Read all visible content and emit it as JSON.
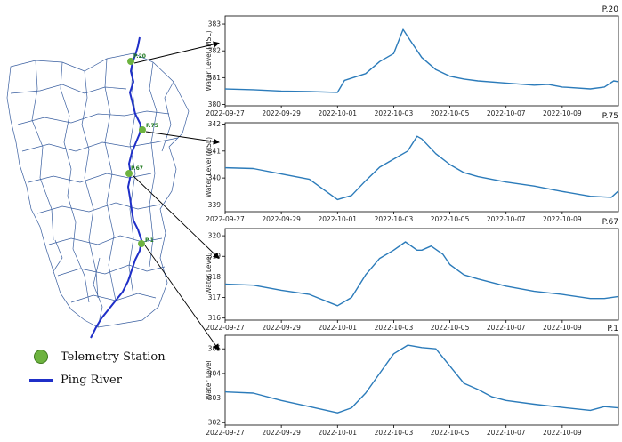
{
  "legend": {
    "station_label": "Telemetry Station",
    "river_label": "Ping River"
  },
  "map": {
    "stations": [
      "P.20",
      "P.75",
      "P.67",
      "P.1"
    ],
    "station_color": "#6db33f",
    "river_color": "#1f2fc8",
    "boundary_color": "#3a5fa0"
  },
  "chart_data": [
    {
      "type": "line",
      "title": "P.20",
      "xlabel": "",
      "ylabel": "Water Level (MSL)",
      "x_ticks": [
        "2022-09-27",
        "2022-09-29",
        "2022-10-01",
        "2022-10-03",
        "2022-10-05",
        "2022-10-07",
        "2022-10-09"
      ],
      "y_ticks": [
        380,
        381,
        382,
        383
      ],
      "xlim": [
        "2022-09-27",
        "2022-10-11"
      ],
      "ylim": [
        379.95,
        383.3
      ],
      "color": "#2b7bba",
      "points": [
        [
          "2022-09-27",
          380.58
        ],
        [
          "2022-09-28",
          380.55
        ],
        [
          "2022-09-29",
          380.5
        ],
        [
          "2022-09-30",
          380.48
        ],
        [
          "2022-10-01",
          380.45
        ],
        [
          "2022-10-01T06",
          380.9
        ],
        [
          "2022-10-02",
          381.15
        ],
        [
          "2022-10-02T12",
          381.6
        ],
        [
          "2022-10-03",
          381.9
        ],
        [
          "2022-10-03T08",
          382.8
        ],
        [
          "2022-10-03T14",
          382.4
        ],
        [
          "2022-10-04",
          381.75
        ],
        [
          "2022-10-04T12",
          381.3
        ],
        [
          "2022-10-05",
          381.05
        ],
        [
          "2022-10-05T12",
          380.95
        ],
        [
          "2022-10-06",
          380.88
        ],
        [
          "2022-10-07",
          380.8
        ],
        [
          "2022-10-08",
          380.72
        ],
        [
          "2022-10-08T12",
          380.75
        ],
        [
          "2022-10-09",
          380.65
        ],
        [
          "2022-10-10",
          380.58
        ],
        [
          "2022-10-10T12",
          380.65
        ],
        [
          "2022-10-10T20",
          380.88
        ],
        [
          "2022-10-11",
          380.85
        ]
      ]
    },
    {
      "type": "line",
      "title": "P.75",
      "xlabel": "",
      "ylabel": "Water Level (MSL)",
      "x_ticks": [
        "2022-09-27",
        "2022-09-29",
        "2022-10-01",
        "2022-10-03",
        "2022-10-05",
        "2022-10-07",
        "2022-10-09"
      ],
      "y_ticks": [
        339,
        340,
        341,
        342
      ],
      "xlim": [
        "2022-09-27",
        "2022-10-11"
      ],
      "ylim": [
        338.75,
        342.05
      ],
      "color": "#2b7bba",
      "points": [
        [
          "2022-09-27",
          340.38
        ],
        [
          "2022-09-28",
          340.35
        ],
        [
          "2022-09-29",
          340.15
        ],
        [
          "2022-09-30",
          339.95
        ],
        [
          "2022-10-01",
          339.2
        ],
        [
          "2022-10-01T12",
          339.35
        ],
        [
          "2022-10-02",
          339.9
        ],
        [
          "2022-10-02T12",
          340.4
        ],
        [
          "2022-10-03",
          340.7
        ],
        [
          "2022-10-03T12",
          341.0
        ],
        [
          "2022-10-03T20",
          341.55
        ],
        [
          "2022-10-04",
          341.45
        ],
        [
          "2022-10-04T12",
          340.9
        ],
        [
          "2022-10-05",
          340.5
        ],
        [
          "2022-10-05T12",
          340.2
        ],
        [
          "2022-10-06",
          340.05
        ],
        [
          "2022-10-07",
          339.85
        ],
        [
          "2022-10-08",
          339.7
        ],
        [
          "2022-10-08T18",
          339.55
        ],
        [
          "2022-10-09",
          339.5
        ],
        [
          "2022-10-10",
          339.32
        ],
        [
          "2022-10-10T18",
          339.28
        ],
        [
          "2022-10-11",
          339.52
        ]
      ]
    },
    {
      "type": "line",
      "title": "P.67",
      "xlabel": "",
      "ylabel": "Water Level",
      "x_ticks": [
        "2022-09-27",
        "2022-09-29",
        "2022-10-01",
        "2022-10-03",
        "2022-10-05",
        "2022-10-07",
        "2022-10-09"
      ],
      "y_ticks": [
        316,
        317,
        318,
        319,
        320
      ],
      "xlim": [
        "2022-09-27",
        "2022-10-11"
      ],
      "ylim": [
        315.9,
        320.35
      ],
      "color": "#2b7bba",
      "points": [
        [
          "2022-09-27",
          317.65
        ],
        [
          "2022-09-28",
          317.6
        ],
        [
          "2022-09-29",
          317.35
        ],
        [
          "2022-09-30",
          317.15
        ],
        [
          "2022-10-01",
          316.6
        ],
        [
          "2022-10-01T12",
          317.0
        ],
        [
          "2022-10-02",
          318.1
        ],
        [
          "2022-10-02T12",
          318.9
        ],
        [
          "2022-10-03",
          319.3
        ],
        [
          "2022-10-03T10",
          319.7
        ],
        [
          "2022-10-03T20",
          319.3
        ],
        [
          "2022-10-04",
          319.3
        ],
        [
          "2022-10-04T08",
          319.5
        ],
        [
          "2022-10-04T18",
          319.1
        ],
        [
          "2022-10-05",
          318.6
        ],
        [
          "2022-10-05T12",
          318.1
        ],
        [
          "2022-10-06",
          317.9
        ],
        [
          "2022-10-07",
          317.55
        ],
        [
          "2022-10-08",
          317.3
        ],
        [
          "2022-10-09",
          317.15
        ],
        [
          "2022-10-10",
          316.95
        ],
        [
          "2022-10-10T12",
          316.95
        ],
        [
          "2022-10-11",
          317.05
        ]
      ]
    },
    {
      "type": "line",
      "title": "P.1",
      "xlabel": "",
      "ylabel": "Water Level",
      "x_ticks": [
        "2022-09-27",
        "2022-09-29",
        "2022-10-01",
        "2022-10-03",
        "2022-10-05",
        "2022-10-07",
        "2022-10-09"
      ],
      "y_ticks": [
        302,
        303,
        304,
        305
      ],
      "xlim": [
        "2022-09-27",
        "2022-10-11"
      ],
      "ylim": [
        301.9,
        305.55
      ],
      "color": "#2b7bba",
      "points": [
        [
          "2022-09-27",
          303.25
        ],
        [
          "2022-09-28",
          303.2
        ],
        [
          "2022-09-29",
          302.9
        ],
        [
          "2022-09-30",
          302.65
        ],
        [
          "2022-10-01",
          302.4
        ],
        [
          "2022-10-01T12",
          302.6
        ],
        [
          "2022-10-02",
          303.2
        ],
        [
          "2022-10-02T12",
          304.0
        ],
        [
          "2022-10-03",
          304.8
        ],
        [
          "2022-10-03T12",
          305.15
        ],
        [
          "2022-10-04",
          305.05
        ],
        [
          "2022-10-04T12",
          305.0
        ],
        [
          "2022-10-05",
          304.3
        ],
        [
          "2022-10-05T12",
          303.6
        ],
        [
          "2022-10-06",
          303.35
        ],
        [
          "2022-10-06T12",
          303.05
        ],
        [
          "2022-10-07",
          302.9
        ],
        [
          "2022-10-08",
          302.75
        ],
        [
          "2022-10-09",
          302.62
        ],
        [
          "2022-10-10",
          302.5
        ],
        [
          "2022-10-10T12",
          302.65
        ],
        [
          "2022-10-11",
          302.6
        ]
      ]
    }
  ]
}
